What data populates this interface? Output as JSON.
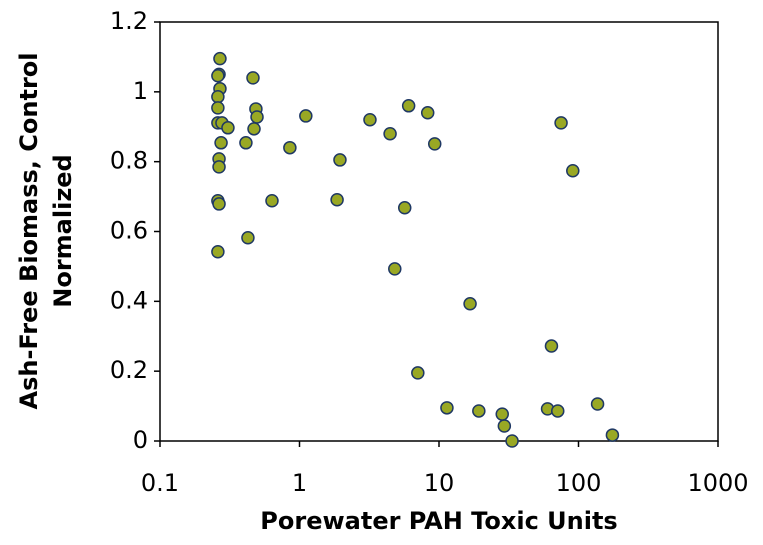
{
  "chart_data": {
    "type": "scatter",
    "xlabel": "Porewater PAH Toxic Units",
    "ylabel": [
      "Ash-Free Biomass, Control",
      "Normalized"
    ],
    "xscale": "log",
    "xlim": [
      0.1,
      1000
    ],
    "xticks": [
      0.1,
      1,
      10,
      100,
      1000
    ],
    "ylim": [
      0,
      1.2
    ],
    "yticks": [
      0,
      0.2,
      0.4,
      0.6,
      0.8,
      1,
      1.2
    ],
    "grid": false,
    "series": [
      {
        "color": "#99a824",
        "edgecolor": "#1f3864",
        "x": [
          0.269,
          0.265,
          0.26,
          0.269,
          0.26,
          0.26,
          0.26,
          0.278,
          0.307,
          0.274,
          0.265,
          0.265,
          0.26,
          0.265,
          0.26,
          0.464,
          0.487,
          0.496,
          0.472,
          0.413,
          0.427,
          0.635,
          0.853,
          1.11,
          1.86,
          1.95,
          3.2,
          4.46,
          6.06,
          8.3,
          9.32,
          5.68,
          4.82,
          7.05,
          11.4,
          16.7,
          19.3,
          28.4,
          29.4,
          33.4,
          60,
          64,
          71,
          75,
          91,
          137,
          175
        ],
        "values": [
          1.095,
          1.05,
          1.046,
          1.009,
          0.986,
          0.954,
          0.911,
          0.911,
          0.897,
          0.854,
          0.808,
          0.785,
          0.688,
          0.679,
          0.542,
          1.04,
          0.951,
          0.928,
          0.894,
          0.854,
          0.582,
          0.688,
          0.84,
          0.931,
          0.691,
          0.805,
          0.92,
          0.88,
          0.96,
          0.94,
          0.851,
          0.668,
          0.493,
          0.195,
          0.095,
          0.393,
          0.086,
          0.077,
          0.043,
          0.0,
          0.092,
          0.272,
          0.086,
          0.911,
          0.774,
          0.106,
          0.017
        ]
      }
    ]
  }
}
